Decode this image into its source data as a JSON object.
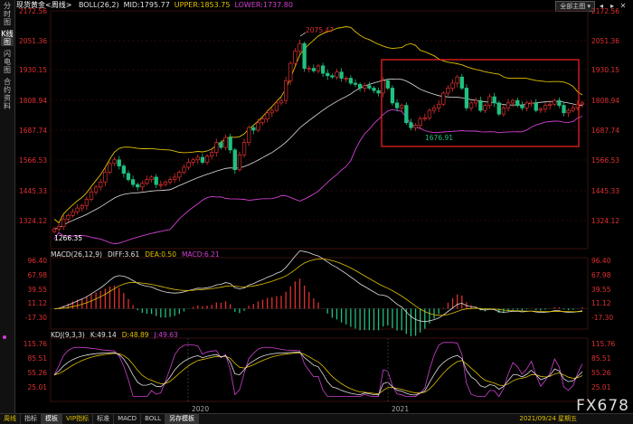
{
  "sidebar": {
    "items": [
      {
        "label": "分时图",
        "active": false
      },
      {
        "label": "K线图",
        "active": true
      },
      {
        "label": "闪电图",
        "active": false
      },
      {
        "label": "合约资料",
        "active": false
      }
    ]
  },
  "header": {
    "title": "现货黄金<周线>",
    "indicators": [
      {
        "text": "BOLL(26,2)",
        "color": "#e0e0e0"
      },
      {
        "text": "MID:1795.77",
        "color": "#e0e0e0"
      },
      {
        "text": "UPPER:1853.75",
        "color": "#e0c000"
      },
      {
        "text": "LOWER:1737.80",
        "color": "#d040d0"
      }
    ],
    "menu_label": "全部主图",
    "icons": [
      "chevron-down-icon",
      "back-icon",
      "forward-icon",
      "close-icon"
    ]
  },
  "macd_header": {
    "items": [
      {
        "text": "MACD(26,12,9)",
        "color": "#e0e0e0"
      },
      {
        "text": "DIFF:3.61",
        "color": "#e0e0e0"
      },
      {
        "text": "DEA:0.50",
        "color": "#e0c000"
      },
      {
        "text": "MACD:6.21",
        "color": "#d040d0"
      }
    ]
  },
  "kdj_header": {
    "items": [
      {
        "text": "KDJ(9,3,3)",
        "color": "#e0e0e0"
      },
      {
        "text": "K:49.14",
        "color": "#e0e0e0"
      },
      {
        "text": "D:48.89",
        "color": "#e0c000"
      },
      {
        "text": "J:49.63",
        "color": "#d040d0"
      }
    ]
  },
  "price_axis": [
    "2172.56",
    "2051.36",
    "1930.15",
    "1808.94",
    "1687.74",
    "1566.53",
    "1445.33",
    "1324.12"
  ],
  "macd_axis": [
    "96.40",
    "67.98",
    "39.55",
    "11.12",
    "-17.30"
  ],
  "kdj_axis": [
    "115.76",
    "85.51",
    "55.26",
    "25.01"
  ],
  "annotations": {
    "high": "2075.47",
    "low1": "1266.35",
    "low2": "1676.91"
  },
  "years": [
    "2020",
    "2021"
  ],
  "bottom_tabs": [
    {
      "label": "周线",
      "style": "gold"
    },
    {
      "label": "指标",
      "style": ""
    },
    {
      "label": "模板",
      "style": "active"
    },
    {
      "label": "VIP指标",
      "style": "gold"
    },
    {
      "label": "标准",
      "style": ""
    },
    {
      "label": "MACD",
      "style": ""
    },
    {
      "label": "BOLL",
      "style": ""
    },
    {
      "label": "另存模板",
      "style": "active"
    }
  ],
  "date_label": "2021/09/24 星期五",
  "watermark": "FX678",
  "colors": {
    "up": "#e03030",
    "down": "#20c080",
    "mid": "#e0e0e0",
    "upper": "#e0c000",
    "lower": "#d040d0",
    "highlight_box": "#ff2020"
  },
  "chart_data": {
    "type": "candlestick",
    "weekly_closes": [
      1290,
      1300,
      1330,
      1345,
      1360,
      1375,
      1385,
      1410,
      1440,
      1460,
      1480,
      1520,
      1555,
      1570,
      1545,
      1515,
      1490,
      1470,
      1460,
      1475,
      1490,
      1500,
      1470,
      1470,
      1480,
      1490,
      1500,
      1520,
      1540,
      1560,
      1570,
      1580,
      1560,
      1585,
      1600,
      1640,
      1620,
      1660,
      1610,
      1530,
      1590,
      1640,
      1700,
      1690,
      1720,
      1735,
      1760,
      1770,
      1800,
      1810,
      1890,
      1960,
      2010,
      2040,
      1940,
      1940,
      1930,
      1950,
      1920,
      1910,
      1905,
      1925,
      1900,
      1900,
      1880,
      1875,
      1860,
      1870,
      1860,
      1850,
      1840,
      1890,
      1860,
      1800,
      1780,
      1790,
      1720,
      1700,
      1710,
      1735,
      1740,
      1770,
      1780,
      1795,
      1840,
      1860,
      1880,
      1905,
      1860,
      1780,
      1800,
      1810,
      1770,
      1790,
      1825,
      1800,
      1755,
      1780,
      1800,
      1810,
      1790,
      1780,
      1800,
      1800,
      1770,
      1775,
      1790,
      1795,
      1810,
      1790,
      1760,
      1770,
      1780,
      1795,
      1800
    ]
  }
}
